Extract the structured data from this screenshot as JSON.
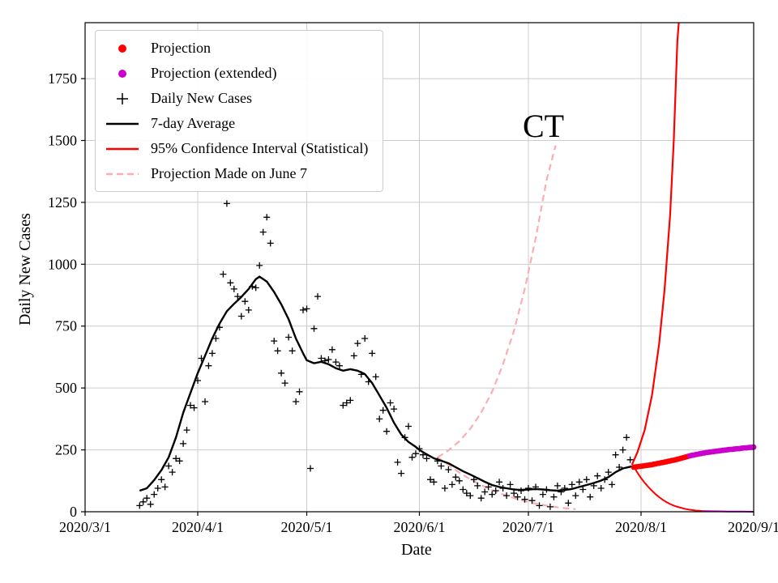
{
  "figure": {
    "title": "CT",
    "xlabel": "Date",
    "ylabel": "Daily New Cases"
  },
  "legend": {
    "items": [
      {
        "label": "Projection",
        "marker": "dot",
        "color": "#ff0000"
      },
      {
        "label": "Projection (extended)",
        "marker": "dot",
        "color": "#cc00cc"
      },
      {
        "label": "Daily New Cases",
        "marker": "plus",
        "color": "#000000"
      },
      {
        "label": "7-day Average",
        "marker": "line",
        "color": "#000000"
      },
      {
        "label": "95% Confidence Interval (Statistical)",
        "marker": "line",
        "color": "#ff0000"
      },
      {
        "label": "Projection Made on June 7",
        "marker": "dashed",
        "color": "#fbadb5"
      }
    ]
  },
  "chart_data": {
    "type": "line",
    "title": "CT",
    "xlabel": "Date",
    "ylabel": "Daily New Cases",
    "x_unit": "days since 2020-03-01",
    "xlim_days": [
      0,
      184
    ],
    "ylim": [
      0,
      1976
    ],
    "grid": true,
    "legend_position": "upper left",
    "colors": {
      "red": "#ff0000",
      "magenta": "#cc00cc",
      "black": "#000000",
      "pink": "#fbadb5",
      "grid": "#cccccc"
    },
    "x_ticks": [
      {
        "day": 0,
        "label": "2020/3/1"
      },
      {
        "day": 31,
        "label": "2020/4/1"
      },
      {
        "day": 61,
        "label": "2020/5/1"
      },
      {
        "day": 92,
        "label": "2020/6/1"
      },
      {
        "day": 122,
        "label": "2020/7/1"
      },
      {
        "day": 153,
        "label": "2020/8/1"
      },
      {
        "day": 184,
        "label": "2020/9/1"
      }
    ],
    "y_ticks": [
      {
        "value": 0,
        "label": "0"
      },
      {
        "value": 250,
        "label": "250"
      },
      {
        "value": 500,
        "label": "500"
      },
      {
        "value": 750,
        "label": "750"
      },
      {
        "value": 1000,
        "label": "1000"
      },
      {
        "value": 1250,
        "label": "1250"
      },
      {
        "value": 1500,
        "label": "1500"
      },
      {
        "value": 1750,
        "label": "1750"
      }
    ],
    "series": {
      "daily_cases": [
        [
          15,
          25
        ],
        [
          16,
          40
        ],
        [
          17,
          55
        ],
        [
          18,
          30
        ],
        [
          19,
          70
        ],
        [
          20,
          95
        ],
        [
          21,
          130
        ],
        [
          22,
          100
        ],
        [
          23,
          185
        ],
        [
          24,
          160
        ],
        [
          25,
          215
        ],
        [
          26,
          205
        ],
        [
          27,
          275
        ],
        [
          28,
          330
        ],
        [
          29,
          430
        ],
        [
          30,
          420
        ],
        [
          31,
          530
        ],
        [
          32,
          620
        ],
        [
          33,
          445
        ],
        [
          34,
          590
        ],
        [
          35,
          640
        ],
        [
          36,
          700
        ],
        [
          37,
          745
        ],
        [
          38,
          960
        ],
        [
          39,
          1245
        ],
        [
          40,
          925
        ],
        [
          41,
          900
        ],
        [
          42,
          870
        ],
        [
          43,
          790
        ],
        [
          44,
          850
        ],
        [
          45,
          815
        ],
        [
          46,
          910
        ],
        [
          47,
          905
        ],
        [
          48,
          995
        ],
        [
          49,
          1130
        ],
        [
          50,
          1190
        ],
        [
          51,
          1085
        ],
        [
          52,
          690
        ],
        [
          53,
          650
        ],
        [
          54,
          560
        ],
        [
          55,
          520
        ],
        [
          56,
          705
        ],
        [
          57,
          650
        ],
        [
          58,
          445
        ],
        [
          59,
          485
        ],
        [
          60,
          815
        ],
        [
          61,
          820
        ],
        [
          62,
          175
        ],
        [
          63,
          740
        ],
        [
          64,
          870
        ],
        [
          65,
          620
        ],
        [
          66,
          610
        ],
        [
          67,
          615
        ],
        [
          68,
          655
        ],
        [
          69,
          605
        ],
        [
          70,
          590
        ],
        [
          71,
          430
        ],
        [
          72,
          440
        ],
        [
          73,
          450
        ],
        [
          74,
          630
        ],
        [
          75,
          680
        ],
        [
          76,
          555
        ],
        [
          77,
          700
        ],
        [
          78,
          525
        ],
        [
          79,
          640
        ],
        [
          80,
          545
        ],
        [
          81,
          375
        ],
        [
          82,
          410
        ],
        [
          83,
          325
        ],
        [
          84,
          440
        ],
        [
          85,
          415
        ],
        [
          86,
          200
        ],
        [
          87,
          155
        ],
        [
          88,
          300
        ],
        [
          89,
          345
        ],
        [
          90,
          220
        ],
        [
          91,
          235
        ],
        [
          92,
          255
        ],
        [
          93,
          230
        ],
        [
          94,
          215
        ],
        [
          95,
          130
        ],
        [
          96,
          120
        ],
        [
          97,
          205
        ],
        [
          98,
          185
        ],
        [
          99,
          95
        ],
        [
          100,
          170
        ],
        [
          101,
          110
        ],
        [
          102,
          140
        ],
        [
          103,
          125
        ],
        [
          104,
          90
        ],
        [
          105,
          75
        ],
        [
          106,
          65
        ],
        [
          107,
          130
        ],
        [
          108,
          105
        ],
        [
          109,
          55
        ],
        [
          110,
          80
        ],
        [
          111,
          100
        ],
        [
          112,
          70
        ],
        [
          113,
          85
        ],
        [
          114,
          120
        ],
        [
          115,
          95
        ],
        [
          116,
          65
        ],
        [
          117,
          110
        ],
        [
          118,
          75
        ],
        [
          119,
          60
        ],
        [
          120,
          85
        ],
        [
          121,
          50
        ],
        [
          122,
          95
        ],
        [
          123,
          45
        ],
        [
          124,
          100
        ],
        [
          125,
          25
        ],
        [
          126,
          70
        ],
        [
          127,
          90
        ],
        [
          128,
          20
        ],
        [
          129,
          60
        ],
        [
          130,
          105
        ],
        [
          131,
          80
        ],
        [
          132,
          95
        ],
        [
          133,
          35
        ],
        [
          134,
          110
        ],
        [
          135,
          65
        ],
        [
          136,
          120
        ],
        [
          137,
          90
        ],
        [
          138,
          130
        ],
        [
          139,
          60
        ],
        [
          140,
          105
        ],
        [
          141,
          145
        ],
        [
          142,
          95
        ],
        [
          143,
          130
        ],
        [
          144,
          160
        ],
        [
          145,
          110
        ],
        [
          146,
          230
        ],
        [
          147,
          180
        ],
        [
          148,
          250
        ],
        [
          149,
          300
        ],
        [
          150,
          210
        ]
      ],
      "avg7": [
        [
          15,
          85
        ],
        [
          17,
          95
        ],
        [
          19,
          128
        ],
        [
          21,
          168
        ],
        [
          23,
          220
        ],
        [
          25,
          300
        ],
        [
          27,
          400
        ],
        [
          29,
          480
        ],
        [
          31,
          560
        ],
        [
          33,
          630
        ],
        [
          35,
          700
        ],
        [
          37,
          760
        ],
        [
          39,
          810
        ],
        [
          41,
          840
        ],
        [
          43,
          868
        ],
        [
          45,
          900
        ],
        [
          47,
          940
        ],
        [
          48,
          950
        ],
        [
          50,
          930
        ],
        [
          52,
          888
        ],
        [
          54,
          838
        ],
        [
          56,
          778
        ],
        [
          58,
          700
        ],
        [
          60,
          640
        ],
        [
          61,
          612
        ],
        [
          63,
          600
        ],
        [
          65,
          606
        ],
        [
          67,
          596
        ],
        [
          69,
          580
        ],
        [
          71,
          570
        ],
        [
          73,
          576
        ],
        [
          75,
          570
        ],
        [
          77,
          556
        ],
        [
          79,
          520
        ],
        [
          81,
          470
        ],
        [
          83,
          420
        ],
        [
          85,
          360
        ],
        [
          87,
          312
        ],
        [
          89,
          282
        ],
        [
          91,
          262
        ],
        [
          92,
          250
        ],
        [
          94,
          232
        ],
        [
          96,
          216
        ],
        [
          98,
          206
        ],
        [
          100,
          196
        ],
        [
          102,
          180
        ],
        [
          104,
          164
        ],
        [
          106,
          150
        ],
        [
          108,
          136
        ],
        [
          110,
          121
        ],
        [
          112,
          108
        ],
        [
          114,
          100
        ],
        [
          116,
          95
        ],
        [
          118,
          90
        ],
        [
          120,
          88
        ],
        [
          122,
          90
        ],
        [
          124,
          92
        ],
        [
          126,
          90
        ],
        [
          128,
          87
        ],
        [
          130,
          85
        ],
        [
          132,
          88
        ],
        [
          134,
          92
        ],
        [
          136,
          100
        ],
        [
          138,
          108
        ],
        [
          140,
          116
        ],
        [
          142,
          126
        ],
        [
          144,
          140
        ],
        [
          146,
          160
        ],
        [
          148,
          175
        ],
        [
          150,
          182
        ],
        [
          152,
          186
        ]
      ],
      "projection": [
        [
          151,
          180
        ],
        [
          151.5,
          181
        ],
        [
          152,
          182
        ],
        [
          152.5,
          183
        ],
        [
          153,
          184
        ],
        [
          153.5,
          185
        ],
        [
          154,
          186
        ],
        [
          154.5,
          187
        ],
        [
          155,
          188
        ],
        [
          155.5,
          189
        ],
        [
          156,
          190
        ],
        [
          156.5,
          192
        ],
        [
          157,
          193
        ],
        [
          157.5,
          195
        ],
        [
          158,
          196
        ],
        [
          158.5,
          198
        ],
        [
          159,
          199
        ],
        [
          159.5,
          201
        ],
        [
          160,
          202
        ],
        [
          160.5,
          204
        ],
        [
          161,
          205
        ],
        [
          161.5,
          207
        ],
        [
          162,
          208
        ],
        [
          162.5,
          210
        ],
        [
          163,
          212
        ],
        [
          163.5,
          214
        ],
        [
          164,
          216
        ],
        [
          164.5,
          218
        ],
        [
          165,
          220
        ],
        [
          165.5,
          222
        ],
        [
          166,
          224
        ]
      ],
      "projection_extended": [
        [
          166.5,
          226
        ],
        [
          167,
          228
        ],
        [
          167.5,
          229
        ],
        [
          168,
          231
        ],
        [
          168.5,
          232
        ],
        [
          169,
          234
        ],
        [
          169.5,
          235
        ],
        [
          170,
          237
        ],
        [
          170.5,
          238
        ],
        [
          171,
          239
        ],
        [
          171.5,
          240
        ],
        [
          172,
          241
        ],
        [
          172.5,
          242
        ],
        [
          173,
          243
        ],
        [
          173.5,
          244
        ],
        [
          174,
          245
        ],
        [
          174.5,
          246
        ],
        [
          175,
          247
        ],
        [
          175.5,
          248
        ],
        [
          176,
          249
        ],
        [
          176.5,
          250
        ],
        [
          177,
          251
        ],
        [
          177.5,
          252
        ],
        [
          178,
          252
        ],
        [
          178.5,
          253
        ],
        [
          179,
          254
        ],
        [
          179.5,
          255
        ],
        [
          180,
          255
        ],
        [
          180.5,
          256
        ],
        [
          181,
          257
        ],
        [
          181.5,
          258
        ],
        [
          182,
          258
        ],
        [
          182.5,
          259
        ],
        [
          183,
          260
        ],
        [
          183.5,
          260
        ],
        [
          184,
          261
        ]
      ],
      "ci_upper": [
        [
          150.5,
          190
        ],
        [
          152,
          240
        ],
        [
          154,
          330
        ],
        [
          156,
          470
        ],
        [
          158,
          680
        ],
        [
          159.5,
          900
        ],
        [
          161,
          1200
        ],
        [
          162,
          1500
        ],
        [
          163,
          1900
        ],
        [
          163.4,
          1976
        ]
      ],
      "ci_lower": [
        [
          151,
          183
        ],
        [
          152,
          158
        ],
        [
          153,
          136
        ],
        [
          154,
          117
        ],
        [
          155,
          100
        ],
        [
          156,
          85
        ],
        [
          157,
          71
        ],
        [
          158,
          59
        ],
        [
          159,
          48
        ],
        [
          160,
          39
        ],
        [
          161,
          31
        ],
        [
          162,
          25
        ],
        [
          163,
          20
        ],
        [
          164,
          16
        ],
        [
          165,
          12
        ],
        [
          166,
          9
        ],
        [
          167,
          7
        ],
        [
          168,
          5
        ],
        [
          169,
          4
        ],
        [
          170,
          3
        ]
      ],
      "ci_lower_extended": [
        [
          170,
          3
        ],
        [
          173,
          2
        ],
        [
          177,
          1
        ],
        [
          181,
          1
        ],
        [
          184,
          0
        ]
      ],
      "june7_upper": [
        [
          97,
          220
        ],
        [
          100,
          248
        ],
        [
          103,
          285
        ],
        [
          106,
          335
        ],
        [
          109,
          400
        ],
        [
          112,
          485
        ],
        [
          115,
          595
        ],
        [
          118,
          730
        ],
        [
          121,
          900
        ],
        [
          124,
          1105
        ],
        [
          127,
          1340
        ],
        [
          129.5,
          1480
        ]
      ],
      "june7_lower": [
        [
          97,
          220
        ],
        [
          99,
          200
        ],
        [
          101,
          178
        ],
        [
          103,
          158
        ],
        [
          105,
          140
        ],
        [
          107,
          123
        ],
        [
          109,
          108
        ],
        [
          111,
          94
        ],
        [
          113,
          81
        ],
        [
          115,
          70
        ],
        [
          117,
          60
        ],
        [
          119,
          51
        ],
        [
          121,
          43
        ],
        [
          123,
          36
        ],
        [
          125,
          30
        ],
        [
          127,
          25
        ],
        [
          129,
          20
        ],
        [
          131,
          16
        ],
        [
          133,
          13
        ],
        [
          135,
          10
        ]
      ]
    }
  }
}
